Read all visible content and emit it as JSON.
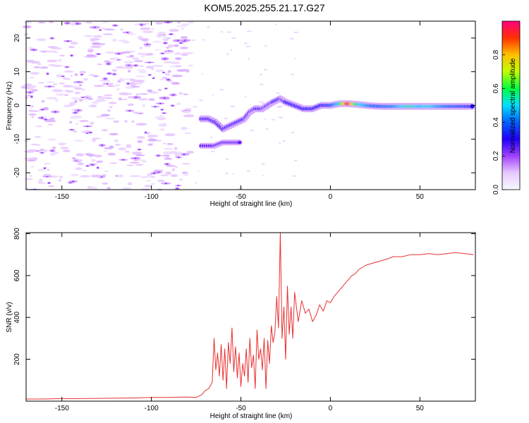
{
  "title": "KOM5.2025.255.21.17.G27",
  "chart_data": [
    {
      "type": "heatmap",
      "xlabel": "Height of straight line (km)",
      "ylabel": "Frequency (Hz)",
      "xlim": [
        -170,
        81
      ],
      "ylim": [
        -25,
        25
      ],
      "xticks": [
        -150,
        -100,
        -50,
        0,
        50
      ],
      "yticks": [
        -20,
        -10,
        0,
        10,
        20
      ],
      "colorbar": {
        "label": "Normalized spectral amplitude",
        "range": [
          0,
          1
        ],
        "ticks": [
          "0.0",
          "0.2",
          "0.4",
          "0.6",
          "0.8"
        ],
        "tick_values": [
          0,
          0.2,
          0.4,
          0.6,
          0.8
        ],
        "colors": [
          "#f8f8ff",
          "#e8c8ff",
          "#a040ff",
          "#2000ff",
          "#0060ff",
          "#00e0ff",
          "#00ff40",
          "#c0ff00",
          "#ffc000",
          "#ff3000",
          "#ff0080"
        ]
      },
      "track": [
        {
          "x": -72,
          "f": -4,
          "a": 0.28
        },
        {
          "x": -68,
          "f": -4,
          "a": 0.3
        },
        {
          "x": -64,
          "f": -5,
          "a": 0.28
        },
        {
          "x": -60,
          "f": -7,
          "a": 0.3
        },
        {
          "x": -56,
          "f": -6,
          "a": 0.28
        },
        {
          "x": -52,
          "f": -5,
          "a": 0.3
        },
        {
          "x": -48,
          "f": -4,
          "a": 0.3
        },
        {
          "x": -45,
          "f": -2,
          "a": 0.28
        },
        {
          "x": -42,
          "f": -1,
          "a": 0.28
        },
        {
          "x": -38,
          "f": -1,
          "a": 0.3
        },
        {
          "x": -35,
          "f": 0,
          "a": 0.3
        },
        {
          "x": -32,
          "f": 1,
          "a": 0.3
        },
        {
          "x": -28,
          "f": 2,
          "a": 0.32
        },
        {
          "x": -25,
          "f": 1,
          "a": 0.3
        },
        {
          "x": -20,
          "f": 0,
          "a": 0.32
        },
        {
          "x": -15,
          "f": -1,
          "a": 0.3
        },
        {
          "x": -10,
          "f": -1,
          "a": 0.32
        },
        {
          "x": -5,
          "f": 0,
          "a": 0.3
        },
        {
          "x": 0,
          "f": 0,
          "a": 0.35
        },
        {
          "x": 5,
          "f": 0.5,
          "a": 0.5
        },
        {
          "x": 10,
          "f": 0.5,
          "a": 0.95
        },
        {
          "x": 15,
          "f": 0.3,
          "a": 0.55
        },
        {
          "x": 20,
          "f": 0,
          "a": 0.45
        },
        {
          "x": 25,
          "f": -0.2,
          "a": 0.38
        },
        {
          "x": 30,
          "f": -0.3,
          "a": 0.4
        },
        {
          "x": 35,
          "f": -0.3,
          "a": 0.42
        },
        {
          "x": 40,
          "f": -0.3,
          "a": 0.5
        },
        {
          "x": 45,
          "f": -0.3,
          "a": 0.55
        },
        {
          "x": 50,
          "f": -0.3,
          "a": 0.48
        },
        {
          "x": 55,
          "f": -0.3,
          "a": 0.52
        },
        {
          "x": 60,
          "f": -0.3,
          "a": 0.45
        },
        {
          "x": 65,
          "f": -0.3,
          "a": 0.4
        },
        {
          "x": 70,
          "f": -0.3,
          "a": 0.38
        },
        {
          "x": 75,
          "f": -0.3,
          "a": 0.35
        },
        {
          "x": 80,
          "f": -0.3,
          "a": 0.3
        }
      ],
      "secondary_track": [
        {
          "x": -72,
          "f": -12,
          "a": 0.25
        },
        {
          "x": -65,
          "f": -12,
          "a": 0.25
        },
        {
          "x": -60,
          "f": -11,
          "a": 0.25
        },
        {
          "x": -55,
          "f": -11,
          "a": 0.25
        },
        {
          "x": -50,
          "f": -11,
          "a": 0.25
        }
      ]
    },
    {
      "type": "line",
      "xlabel": "Height of straight line (km)",
      "ylabel": "SNR (v/v)",
      "xlim": [
        -170,
        81
      ],
      "ylim": [
        0,
        805
      ],
      "xticks": [
        -150,
        -100,
        -50,
        0,
        50
      ],
      "yticks": [
        200,
        400,
        600,
        800
      ],
      "line_color": "#e83030",
      "series": [
        {
          "name": "SNR",
          "x": [
            -170,
            -160,
            -150,
            -140,
            -130,
            -120,
            -110,
            -100,
            -90,
            -80,
            -75,
            -72,
            -70,
            -68,
            -66,
            -65,
            -64,
            -63,
            -62,
            -61,
            -60,
            -59,
            -58,
            -57,
            -56,
            -55,
            -54,
            -53,
            -52,
            -51,
            -50,
            -49,
            -48,
            -47,
            -46,
            -45,
            -44,
            -43,
            -42,
            -41,
            -40,
            -39,
            -38,
            -37,
            -36,
            -35,
            -34,
            -33,
            -32,
            -31,
            -30,
            -29,
            -28,
            -27,
            -26,
            -25,
            -24,
            -23,
            -22,
            -21,
            -20,
            -18,
            -16,
            -14,
            -12,
            -10,
            -8,
            -6,
            -4,
            -2,
            0,
            2,
            4,
            6,
            8,
            10,
            12,
            14,
            16,
            18,
            20,
            22,
            24,
            26,
            28,
            30,
            32,
            35,
            40,
            45,
            50,
            55,
            60,
            65,
            70,
            75,
            80
          ],
          "values": [
            10,
            10,
            12,
            12,
            13,
            14,
            15,
            18,
            18,
            20,
            18,
            30,
            50,
            60,
            90,
            300,
            150,
            230,
            120,
            270,
            100,
            250,
            60,
            280,
            180,
            350,
            140,
            260,
            110,
            230,
            70,
            180,
            120,
            250,
            90,
            300,
            160,
            220,
            60,
            340,
            200,
            250,
            150,
            300,
            60,
            290,
            180,
            360,
            280,
            330,
            500,
            350,
            805,
            300,
            450,
            200,
            550,
            320,
            450,
            300,
            520,
            380,
            480,
            420,
            440,
            380,
            410,
            460,
            430,
            480,
            470,
            500,
            520,
            540,
            560,
            580,
            600,
            610,
            630,
            640,
            650,
            655,
            660,
            665,
            670,
            675,
            680,
            690,
            690,
            700,
            700,
            705,
            700,
            705,
            710,
            705,
            700
          ]
        }
      ]
    }
  ]
}
